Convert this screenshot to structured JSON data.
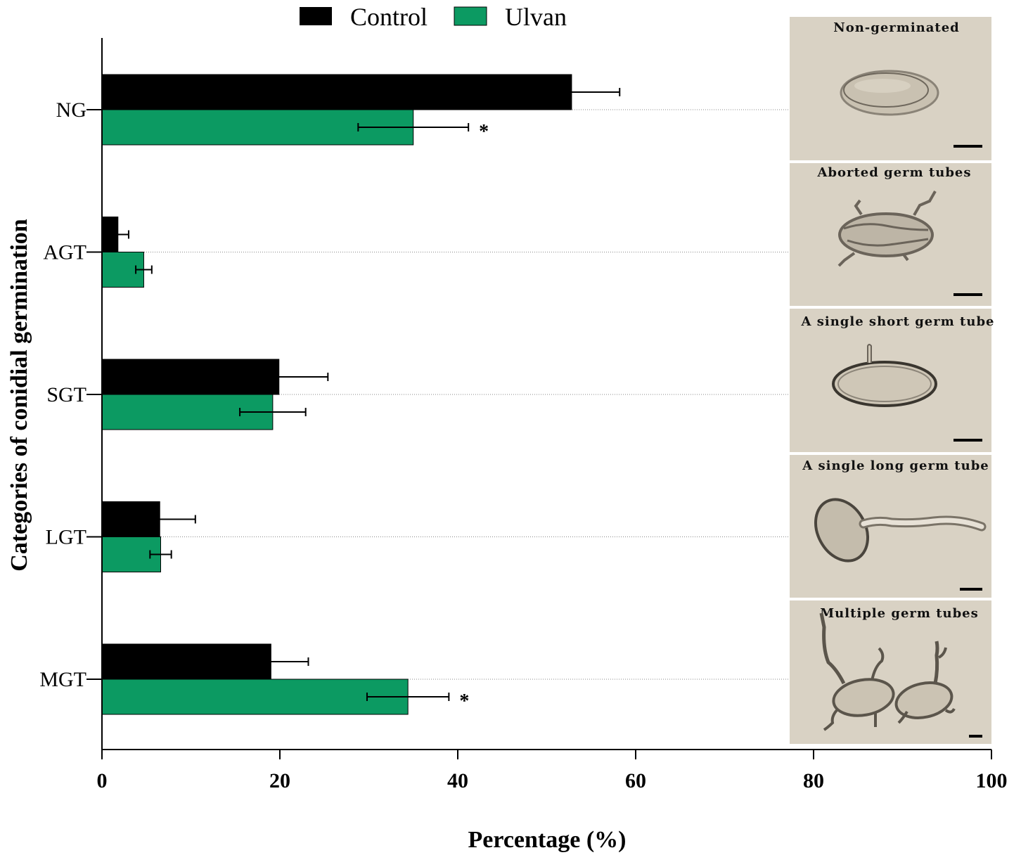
{
  "chart_data": {
    "type": "bar",
    "orientation": "horizontal",
    "xlabel": "Percentage (%)",
    "ylabel": "Categories of conidial germination",
    "xlim": [
      0,
      100
    ],
    "xticks": [
      "0",
      "20",
      "40",
      "60",
      "80",
      "100"
    ],
    "categories": [
      "NG",
      "AGT",
      "SGT",
      "LGT",
      "MGT"
    ],
    "legend_position": "top",
    "series": [
      {
        "name": "Control",
        "color": "#000000",
        "values": [
          52.8,
          1.8,
          19.9,
          6.5,
          19.0
        ],
        "errors": [
          5.4,
          1.2,
          5.5,
          4.0,
          4.2
        ]
      },
      {
        "name": "Ulvan",
        "color": "#0c9a62",
        "values": [
          35.0,
          4.7,
          19.2,
          6.6,
          34.4
        ],
        "errors": [
          6.2,
          0.9,
          3.7,
          1.2,
          4.6
        ]
      }
    ],
    "significance": [
      "*",
      "",
      "",
      "",
      "*"
    ],
    "grid": false
  },
  "panels": [
    {
      "label": "Non-germinated",
      "icon": "non-germinated-conidium"
    },
    {
      "label": "Aborted germ tubes",
      "icon": "aborted-germ-tubes-conidium"
    },
    {
      "label": "A single short germ tube",
      "icon": "short-germ-tube-conidium"
    },
    {
      "label": "A single long germ tube",
      "icon": "long-germ-tube-conidium"
    },
    {
      "label": "Multiple germ tubes",
      "icon": "multiple-germ-tubes-conidia"
    }
  ],
  "colors": {
    "panel_bg": "#d9d2c4",
    "control": "#000000",
    "ulvan": "#0c9a62"
  }
}
